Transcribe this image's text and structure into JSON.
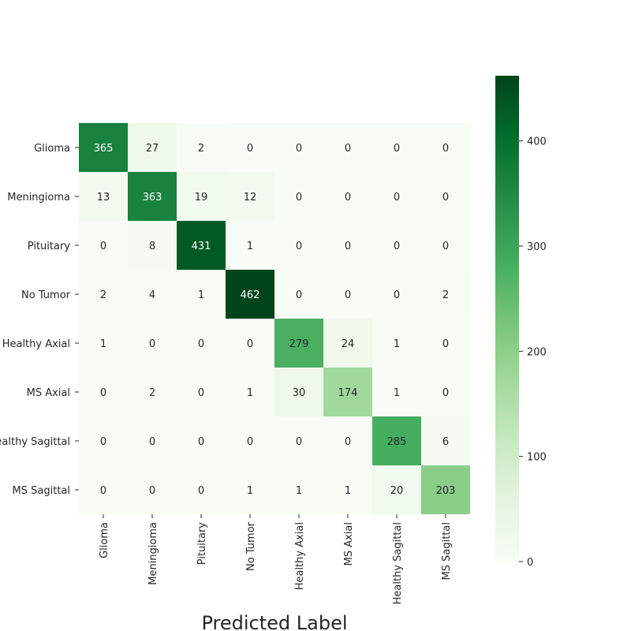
{
  "chart_data": {
    "type": "heatmap",
    "xlabel": "Predicted Label",
    "ylabel": "",
    "row_labels": [
      "Glioma",
      "Meningioma",
      "Pituitary",
      "No Tumor",
      "Healthy Axial",
      "MS Axial",
      "Healthy Sagittal",
      "MS Sagittal"
    ],
    "col_labels": [
      "Glioma",
      "Meningioma",
      "Pituitary",
      "No Tumor",
      "Healthy Axial",
      "MS Axial",
      "Healthy Sagittal",
      "MS Sagittal"
    ],
    "matrix": [
      [
        365,
        27,
        2,
        0,
        0,
        0,
        0,
        0
      ],
      [
        13,
        363,
        19,
        12,
        0,
        0,
        0,
        0
      ],
      [
        0,
        8,
        431,
        1,
        0,
        0,
        0,
        0
      ],
      [
        2,
        4,
        1,
        462,
        0,
        0,
        0,
        2
      ],
      [
        1,
        0,
        0,
        0,
        279,
        24,
        1,
        0
      ],
      [
        0,
        2,
        0,
        1,
        30,
        174,
        1,
        0
      ],
      [
        0,
        0,
        0,
        0,
        0,
        0,
        285,
        6
      ],
      [
        0,
        0,
        0,
        1,
        1,
        1,
        20,
        203
      ]
    ],
    "colorbar": {
      "min": 0,
      "max": 462,
      "ticks": [
        0,
        100,
        200,
        300,
        400
      ],
      "colormap": "Greens"
    },
    "grid": false
  }
}
